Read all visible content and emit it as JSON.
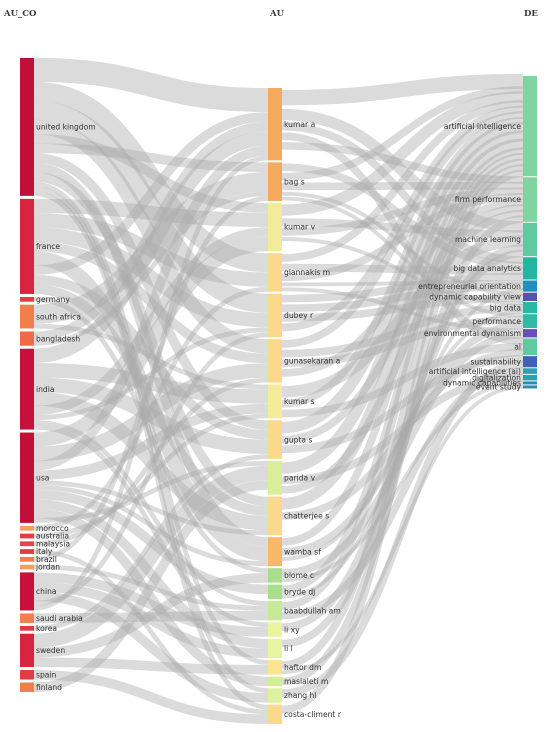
{
  "headers": {
    "left": "AU_CO",
    "middle": "AU",
    "right": "DE"
  },
  "countries": [
    {
      "name": "united kingdom",
      "color": "#c0103a"
    },
    {
      "name": "france",
      "color": "#d7253f"
    },
    {
      "name": "germany",
      "color": "#e23b41"
    },
    {
      "name": "south africa",
      "color": "#f07f4b"
    },
    {
      "name": "bangladesh",
      "color": "#f06a47"
    },
    {
      "name": "india",
      "color": "#c8103c"
    },
    {
      "name": "usa",
      "color": "#c0103a"
    },
    {
      "name": "morocco",
      "color": "#f2a15c"
    },
    {
      "name": "australia",
      "color": "#e23b41"
    },
    {
      "name": "malaysia",
      "color": "#e8434a"
    },
    {
      "name": "italy",
      "color": "#e23b41"
    },
    {
      "name": "brazil",
      "color": "#f07f4b"
    },
    {
      "name": "jordan",
      "color": "#f2a15c"
    },
    {
      "name": "china",
      "color": "#c8103c"
    },
    {
      "name": "saudi arabia",
      "color": "#f07f4b"
    },
    {
      "name": "korea",
      "color": "#e23b41"
    },
    {
      "name": "sweden",
      "color": "#d7253f"
    },
    {
      "name": "spain",
      "color": "#e23b41"
    },
    {
      "name": "finland",
      "color": "#f07f4b"
    }
  ],
  "authors": [
    {
      "name": "kumar a",
      "color": "#f4a95c"
    },
    {
      "name": "bag s",
      "color": "#f4a95c"
    },
    {
      "name": "kumar v",
      "color": "#f2ec9a"
    },
    {
      "name": "giannakis m",
      "color": "#fbd98a"
    },
    {
      "name": "dubey r",
      "color": "#fbd98a"
    },
    {
      "name": "gunasekaran a",
      "color": "#fbd98a"
    },
    {
      "name": "kumar s",
      "color": "#f6eb98"
    },
    {
      "name": "gupta s",
      "color": "#fbd98a"
    },
    {
      "name": "parida v",
      "color": "#d8ee98"
    },
    {
      "name": "chatterjee s",
      "color": "#fbd98a"
    },
    {
      "name": "wamba sf",
      "color": "#f7b967"
    },
    {
      "name": "blome c",
      "color": "#a8de8e"
    },
    {
      "name": "bryde dj",
      "color": "#a8de8e"
    },
    {
      "name": "baabdullah am",
      "color": "#c6e995"
    },
    {
      "name": "li xy",
      "color": "#e9f59e"
    },
    {
      "name": "li l",
      "color": "#e9f59e"
    },
    {
      "name": "haftor dm",
      "color": "#fbe48d"
    },
    {
      "name": "masialeti m",
      "color": "#d2ef98"
    },
    {
      "name": "zhang hl",
      "color": "#dcf29c"
    },
    {
      "name": "costa-climent r",
      "color": "#fbd98a"
    }
  ],
  "keywords": [
    {
      "name": "artificial intelligence",
      "color": "#7fd4a0"
    },
    {
      "name": "firm performance",
      "color": "#7fd4a0"
    },
    {
      "name": "machine learning",
      "color": "#5fcaa0"
    },
    {
      "name": "big data analytics",
      "color": "#22b5a0"
    },
    {
      "name": "entrepreneurial orientation",
      "color": "#1e8fc0"
    },
    {
      "name": "dynamic capability view",
      "color": "#5b4fb0"
    },
    {
      "name": "big data",
      "color": "#29b8a8"
    },
    {
      "name": "performance",
      "color": "#2fbba8"
    },
    {
      "name": "environmental dynamism",
      "color": "#6a4fb8"
    },
    {
      "name": "ai",
      "color": "#5fcaa0"
    },
    {
      "name": "sustainability",
      "color": "#3f5fb8"
    },
    {
      "name": "artificial intelligence (ai)",
      "color": "#2aa0b0"
    },
    {
      "name": "digitalization",
      "color": "#2aa0b0"
    },
    {
      "name": "dynamic capabilities",
      "color": "#2a8ab8"
    },
    {
      "name": "event study",
      "color": "#2a8ab8"
    }
  ],
  "flows_country_author": [
    [
      "united kingdom",
      "kumar a",
      5
    ],
    [
      "united kingdom",
      "giannakis m",
      4
    ],
    [
      "united kingdom",
      "dubey r",
      4
    ],
    [
      "united kingdom",
      "gunasekaran a",
      3
    ],
    [
      "united kingdom",
      "kumar v",
      2
    ],
    [
      "united kingdom",
      "bag s",
      2
    ],
    [
      "united kingdom",
      "gupta s",
      2
    ],
    [
      "united kingdom",
      "wamba sf",
      2
    ],
    [
      "united kingdom",
      "chatterjee s",
      2
    ],
    [
      "united kingdom",
      "haftor dm",
      1
    ],
    [
      "united kingdom",
      "zhang hl",
      1
    ],
    [
      "united kingdom",
      "costa-climent r",
      1
    ],
    [
      "france",
      "kumar v",
      3
    ],
    [
      "france",
      "giannakis m",
      3
    ],
    [
      "france",
      "dubey r",
      3
    ],
    [
      "france",
      "gunasekaran a",
      2
    ],
    [
      "france",
      "wamba sf",
      3
    ],
    [
      "france",
      "kumar a",
      2
    ],
    [
      "france",
      "gupta s",
      2
    ],
    [
      "france",
      "chatterjee s",
      2
    ],
    [
      "germany",
      "blome c",
      1
    ],
    [
      "south africa",
      "bag s",
      4
    ],
    [
      "south africa",
      "kumar s",
      1
    ],
    [
      "bangladesh",
      "kumar a",
      2
    ],
    [
      "bangladesh",
      "bag s",
      1
    ],
    [
      "india",
      "kumar a",
      3
    ],
    [
      "india",
      "kumar s",
      3
    ],
    [
      "india",
      "gupta s",
      3
    ],
    [
      "india",
      "chatterjee s",
      3
    ],
    [
      "india",
      "kumar v",
      2
    ],
    [
      "india",
      "dubey r",
      1
    ],
    [
      "india",
      "baabdullah am",
      1
    ],
    [
      "india",
      "li xy",
      1
    ],
    [
      "usa",
      "kumar v",
      3
    ],
    [
      "usa",
      "gunasekaran a",
      3
    ],
    [
      "usa",
      "kumar a",
      2
    ],
    [
      "usa",
      "kumar s",
      2
    ],
    [
      "usa",
      "chatterjee s",
      1
    ],
    [
      "usa",
      "wamba sf",
      1
    ],
    [
      "usa",
      "bryde dj",
      2
    ],
    [
      "usa",
      "li l",
      2
    ],
    [
      "usa",
      "masialeti m",
      2
    ],
    [
      "usa",
      "parida v",
      1
    ],
    [
      "morocco",
      "giannakis m",
      1
    ],
    [
      "australia",
      "kumar s",
      1
    ],
    [
      "malaysia",
      "gunasekaran a",
      1
    ],
    [
      "italy",
      "costa-climent r",
      1
    ],
    [
      "brazil",
      "bag s",
      1
    ],
    [
      "jordan",
      "baabdullah am",
      1
    ],
    [
      "china",
      "li xy",
      2
    ],
    [
      "china",
      "li l",
      2
    ],
    [
      "china",
      "zhang hl",
      2
    ],
    [
      "china",
      "dubey r",
      1
    ],
    [
      "china",
      "kumar a",
      1
    ],
    [
      "saudi arabia",
      "baabdullah am",
      2
    ],
    [
      "korea",
      "gupta s",
      1
    ],
    [
      "sweden",
      "parida v",
      3
    ],
    [
      "sweden",
      "blome c",
      2
    ],
    [
      "sweden",
      "haftor dm",
      2
    ],
    [
      "spain",
      "costa-climent r",
      2
    ],
    [
      "finland",
      "parida v",
      2
    ]
  ],
  "flows_author_keyword": [
    [
      "kumar a",
      "artificial intelligence",
      4
    ],
    [
      "kumar a",
      "machine learning",
      3
    ],
    [
      "kumar a",
      "big data analytics",
      2
    ],
    [
      "kumar a",
      "ai",
      2
    ],
    [
      "kumar a",
      "firm performance",
      2
    ],
    [
      "bag s",
      "big data analytics",
      2
    ],
    [
      "bag s",
      "artificial intelligence",
      2
    ],
    [
      "bag s",
      "firm performance",
      2
    ],
    [
      "bag s",
      "dynamic capability view",
      1
    ],
    [
      "bag s",
      "performance",
      1
    ],
    [
      "kumar v",
      "artificial intelligence",
      3
    ],
    [
      "kumar v",
      "machine learning",
      2
    ],
    [
      "kumar v",
      "firm performance",
      2
    ],
    [
      "kumar v",
      "big data",
      1
    ],
    [
      "giannakis m",
      "artificial intelligence",
      2
    ],
    [
      "giannakis m",
      "big data analytics",
      2
    ],
    [
      "giannakis m",
      "firm performance",
      2
    ],
    [
      "giannakis m",
      "entrepreneurial orientation",
      1
    ],
    [
      "giannakis m",
      "environmental dynamism",
      1
    ],
    [
      "dubey r",
      "big data analytics",
      2
    ],
    [
      "dubey r",
      "entrepreneurial orientation",
      2
    ],
    [
      "dubey r",
      "dynamic capability view",
      2
    ],
    [
      "dubey r",
      "artificial intelligence",
      2
    ],
    [
      "gunasekaran a",
      "artificial intelligence",
      2
    ],
    [
      "gunasekaran a",
      "big data",
      2
    ],
    [
      "gunasekaran a",
      "performance",
      2
    ],
    [
      "gunasekaran a",
      "firm performance",
      2
    ],
    [
      "kumar s",
      "machine learning",
      3
    ],
    [
      "kumar s",
      "artificial intelligence",
      2
    ],
    [
      "kumar s",
      "ai",
      2
    ],
    [
      "gupta s",
      "artificial intelligence",
      3
    ],
    [
      "gupta s",
      "firm performance",
      2
    ],
    [
      "gupta s",
      "sustainability",
      2
    ],
    [
      "parida v",
      "artificial intelligence",
      3
    ],
    [
      "parida v",
      "digitalization",
      2
    ],
    [
      "parida v",
      "firm performance",
      2
    ],
    [
      "chatterjee s",
      "artificial intelligence",
      3
    ],
    [
      "chatterjee s",
      "ai",
      2
    ],
    [
      "wamba sf",
      "artificial intelligence",
      2
    ],
    [
      "wamba sf",
      "performance",
      2
    ],
    [
      "wamba sf",
      "big data",
      1
    ],
    [
      "blome c",
      "environmental dynamism",
      2
    ],
    [
      "blome c",
      "dynamic capabilities",
      1
    ],
    [
      "bryde dj",
      "artificial intelligence",
      2
    ],
    [
      "bryde dj",
      "entrepreneurial orientation",
      1
    ],
    [
      "baabdullah am",
      "artificial intelligence",
      2
    ],
    [
      "baabdullah am",
      "artificial intelligence (ai)",
      2
    ],
    [
      "li xy",
      "machine learning",
      2
    ],
    [
      "li l",
      "machine learning",
      2
    ],
    [
      "haftor dm",
      "artificial intelligence",
      2
    ],
    [
      "haftor dm",
      "event study",
      1
    ],
    [
      "masialeti m",
      "firm performance",
      2
    ],
    [
      "zhang hl",
      "sustainability",
      2
    ],
    [
      "costa-climent r",
      "artificial intelligence",
      2
    ]
  ]
}
